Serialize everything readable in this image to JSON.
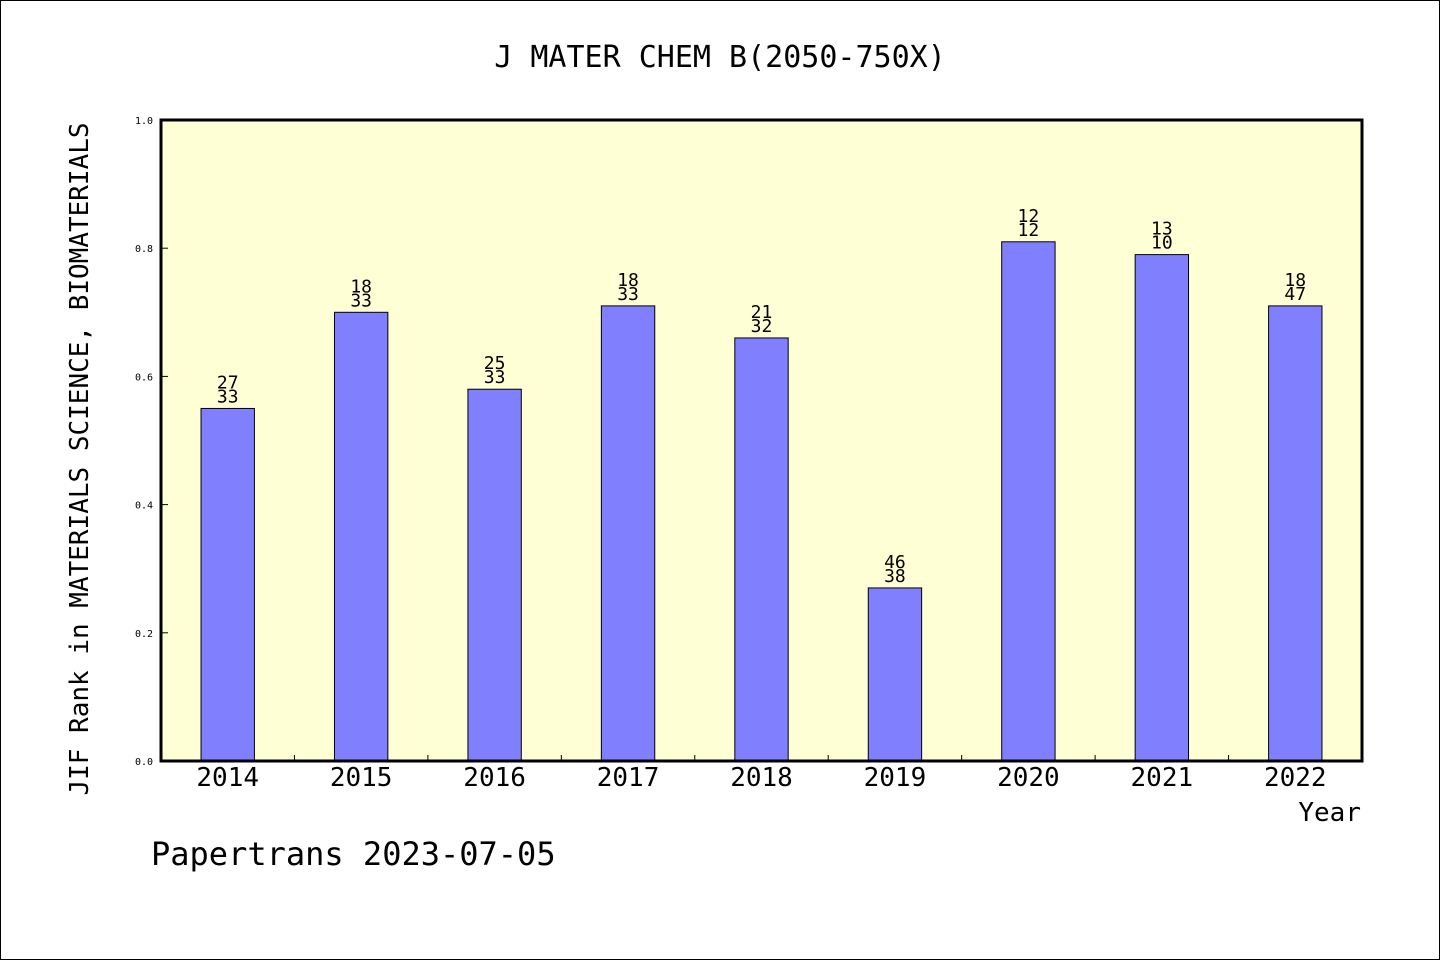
{
  "chart_data": {
    "type": "bar",
    "title": "J MATER CHEM B(2050-750X)",
    "xlabel": "Year",
    "ylabel": "JIF Rank in MATERIALS SCIENCE, BIOMATERIALS",
    "ylim": [
      0,
      1.0
    ],
    "yticks": [
      "0.0",
      "0.2",
      "0.4",
      "0.6",
      "0.8",
      "1.0"
    ],
    "categories": [
      "2014",
      "2015",
      "2016",
      "2017",
      "2018",
      "2019",
      "2020",
      "2021",
      "2022"
    ],
    "values": [
      0.55,
      0.7,
      0.58,
      0.71,
      0.66,
      0.27,
      0.81,
      0.79,
      0.71
    ],
    "labels_top": [
      "27",
      "18",
      "25",
      "18",
      "21",
      "46",
      "12",
      "13",
      "18"
    ],
    "labels_bottom": [
      "33",
      "33",
      "33",
      "33",
      "32",
      "38",
      "12",
      "10",
      "47"
    ],
    "grid": false,
    "colors": {
      "plot_background": "#ffffd5",
      "bar_fill": "#8080ff"
    }
  },
  "footer": "Papertrans 2023-07-05"
}
